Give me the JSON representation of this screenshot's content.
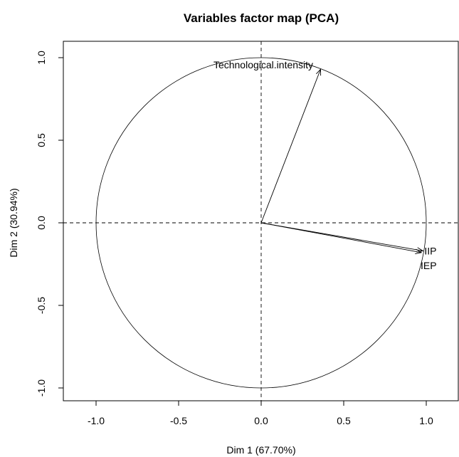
{
  "chart_data": {
    "type": "scatter",
    "title": "Variables factor map (PCA)",
    "xlabel": "Dim 1 (67.70%)",
    "ylabel": "Dim 2 (30.94%)",
    "xlim": [
      -1.1,
      1.1
    ],
    "ylim": [
      -1.1,
      1.1
    ],
    "x_ticks": [
      -1.0,
      -0.5,
      0.0,
      0.5,
      1.0
    ],
    "y_ticks": [
      -1.0,
      -0.5,
      0.0,
      0.5,
      1.0
    ],
    "x_tick_labels": [
      "-1.0",
      "-0.5",
      "0.0",
      "0.5",
      "1.0"
    ],
    "y_tick_labels": [
      "-1.0",
      "-0.5",
      "0.0",
      "0.5",
      "1.0"
    ],
    "correlation_circle_radius": 1.0,
    "reference_lines": {
      "x": 0,
      "y": 0,
      "style": "dashed"
    },
    "variables": [
      {
        "name": "Technological.intensity",
        "x": 0.36,
        "y": 0.93
      },
      {
        "name": "IIP",
        "x": 0.98,
        "y": -0.17
      },
      {
        "name": "IEP",
        "x": 0.97,
        "y": -0.18
      }
    ],
    "grid": false
  }
}
